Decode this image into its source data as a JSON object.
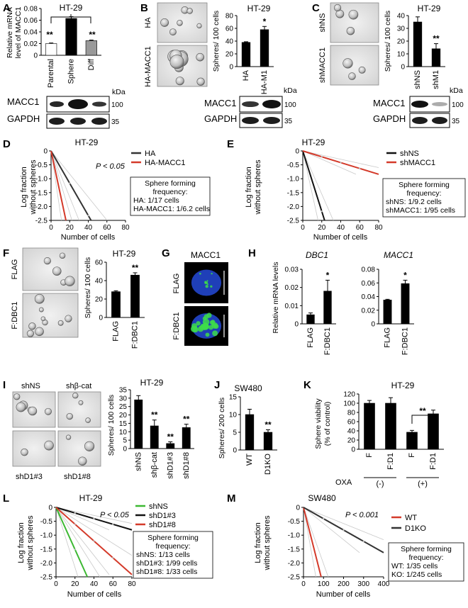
{
  "panels": {
    "A": {
      "letter": "A",
      "title": "HT-29",
      "ylabel": [
        "Relative mRNA",
        "level of MACC1"
      ],
      "yticks": [
        "0",
        "0.02",
        "0.04",
        "0.06",
        "0.08"
      ],
      "categories": [
        "Parental",
        "Sphere",
        "Diff"
      ],
      "sig": [
        "**",
        "**"
      ],
      "blot_labels": [
        "MACC1",
        "GAPDH"
      ],
      "kda": "kDa",
      "mw": [
        "100",
        "35"
      ]
    },
    "B": {
      "letter": "B",
      "title": "HT-29",
      "img_labels": [
        "HA",
        "HA-MACC1"
      ],
      "ylabel": "Spheres/ 100 cells",
      "yticks": [
        "0",
        "20",
        "40",
        "60",
        "80"
      ],
      "categories": [
        "HA",
        "HA-M1"
      ],
      "sig": "*",
      "blot_labels": [
        "MACC1",
        "GAPDH"
      ],
      "kda": "kDa",
      "mw": [
        "100",
        "35"
      ]
    },
    "C": {
      "letter": "C",
      "title": "HT-29",
      "img_labels": [
        "shNS",
        "shMACC1"
      ],
      "ylabel": "Spheres/ 100 cells",
      "yticks": [
        "0",
        "10",
        "20",
        "30",
        "40"
      ],
      "categories": [
        "shNS",
        "shM1"
      ],
      "sig": "**",
      "blot_labels": [
        "MACC1",
        "GAPDH"
      ],
      "kda": "kDa",
      "mw": [
        "100",
        "35"
      ]
    },
    "D": {
      "letter": "D",
      "title": "HT-29",
      "pvalue": "P < 0.05",
      "ylabel": [
        "Log fraction",
        "without spheres"
      ],
      "xlabel": "Number of cells",
      "yticks": [
        "0",
        "-0.5",
        "-1.0",
        "-1.5",
        "-2.0",
        "-2.5"
      ],
      "xticks": [
        "0",
        "20",
        "40",
        "60",
        "80"
      ],
      "legend": [
        "HA",
        "HA-MACC1"
      ],
      "box": [
        "Sphere forming",
        "frequency:",
        "HA: 1/17 cells",
        "HA-MACC1: 1/6.2 cells"
      ]
    },
    "E": {
      "letter": "E",
      "title": "HT-29",
      "ylabel": [
        "Log fraction",
        "without spheres"
      ],
      "xlabel": "Number of cells",
      "yticks": [
        "0",
        "-0.5",
        "-1.0",
        "-1.5",
        "-2.0",
        "-2.5"
      ],
      "xticks": [
        "0",
        "20",
        "40",
        "60",
        "80"
      ],
      "legend": [
        "shNS",
        "shMACC1"
      ],
      "box": [
        "Sphere forming",
        "frequency:",
        "shNS: 1/9.2 cells",
        "shMACC1: 1/95 cells"
      ]
    },
    "F": {
      "letter": "F",
      "title": "HT-29",
      "img_labels": [
        "FLAG",
        "F:DBC1"
      ],
      "ylabel": "Spheres/ 100 cells",
      "yticks": [
        "0",
        "20",
        "40",
        "60"
      ],
      "categories": [
        "FLAG",
        "F:DBC1"
      ],
      "sig": "**"
    },
    "G": {
      "letter": "G",
      "title": "MACC1",
      "img_labels": [
        "FLAG",
        "F:DBC1"
      ]
    },
    "H": {
      "letter": "H",
      "ylabel": "Relative mRNA levels",
      "left": {
        "title": "DBC1",
        "yticks": [
          "0",
          "0.01",
          "0.02",
          "0.03"
        ],
        "sig": "*"
      },
      "right": {
        "title": "MACC1",
        "yticks": [
          "0",
          "0.02",
          "0.04",
          "0.06",
          "0.08"
        ],
        "sig": "*"
      },
      "categories": [
        "FLAG",
        "F:DBC1"
      ]
    },
    "I": {
      "letter": "I",
      "title": "HT-29",
      "img_labels": [
        "shNS",
        "shβ-cat",
        "shD1#3",
        "shD1#8"
      ],
      "ylabel": "Spheres/ 100 cells",
      "yticks": [
        "0",
        "5",
        "10",
        "15",
        "20",
        "25",
        "30",
        "35"
      ],
      "categories": [
        "shNS",
        "shβ-cat",
        "shD1#3",
        "shD1#8"
      ],
      "sig": [
        "",
        "**",
        "**",
        "**"
      ]
    },
    "J": {
      "letter": "J",
      "title": "SW480",
      "ylabel": "Spheres/ 200 cells",
      "yticks": [
        "0",
        "5",
        "10",
        "15"
      ],
      "categories": [
        "WT",
        "D1KO"
      ],
      "sig": "**"
    },
    "K": {
      "letter": "K",
      "title": "HT-29",
      "ylabel": [
        "Sphere viability",
        "(% of control)"
      ],
      "yticks": [
        "0",
        "20",
        "40",
        "60",
        "80",
        "100",
        "120"
      ],
      "categories": [
        "F",
        "F:D1",
        "F",
        "F:D1"
      ],
      "oxa": "OXA",
      "groups": [
        "(-)",
        "(+)"
      ],
      "sig": "**"
    },
    "L": {
      "letter": "L",
      "title": "HT-29",
      "pvalue": "P < 0.05",
      "ylabel": [
        "Log fraction",
        "without spheres"
      ],
      "xlabel": "Number of cells",
      "yticks": [
        "0",
        "-0.5",
        "-1.0",
        "-1.5",
        "-2.0",
        "-2.5"
      ],
      "xticks": [
        "0",
        "20",
        "40",
        "60",
        "80"
      ],
      "legend": [
        "shNS",
        "shD1#3",
        "shD1#8"
      ],
      "box": [
        "Sphere forming",
        "frequency:",
        "shNS: 1/13 cells",
        "shD1#3: 1/99 cells",
        "shD1#8: 1/33 cells"
      ]
    },
    "M": {
      "letter": "M",
      "title": "SW480",
      "pvalue": "P < 0.001",
      "ylabel": [
        "Log fraction",
        "without spheres"
      ],
      "xlabel": "Number of cells",
      "yticks": [
        "0",
        "-0.5",
        "-1.0",
        "-1.5",
        "-2.0",
        "-2.5"
      ],
      "xticks": [
        "0",
        "100",
        "200",
        "300",
        "400"
      ],
      "legend": [
        "WT",
        "D1KO"
      ],
      "box": [
        "Sphere forming",
        "frequency:",
        "WT: 1/35 cells",
        "KO: 1/245 cells"
      ]
    }
  },
  "chart_data": [
    {
      "type": "bar",
      "panel": "A",
      "categories": [
        "Parental",
        "Sphere",
        "Diff"
      ],
      "values": [
        0.02,
        0.063,
        0.025
      ],
      "errors": [
        0.001,
        0.003,
        0.001
      ],
      "ylim": [
        0,
        0.08
      ]
    },
    {
      "type": "bar",
      "panel": "B",
      "categories": [
        "HA",
        "HA-M1"
      ],
      "values": [
        38,
        58
      ],
      "errors": [
        1,
        5
      ],
      "ylim": [
        0,
        80
      ]
    },
    {
      "type": "bar",
      "panel": "C",
      "categories": [
        "shNS",
        "shM1"
      ],
      "values": [
        35,
        14
      ],
      "errors": [
        4,
        4
      ],
      "ylim": [
        0,
        40
      ]
    },
    {
      "type": "line",
      "panel": "D",
      "xlim": [
        0,
        80
      ],
      "ylim": [
        -2.5,
        0
      ],
      "series": [
        {
          "name": "HA",
          "color": "#333333",
          "x": [
            0,
            43
          ],
          "y": [
            0,
            -2.5
          ]
        },
        {
          "name": "HA-MACC1",
          "color": "#d43a2a",
          "x": [
            0,
            16
          ],
          "y": [
            0,
            -2.5
          ]
        }
      ]
    },
    {
      "type": "line",
      "panel": "E",
      "xlim": [
        0,
        80
      ],
      "ylim": [
        -2.5,
        0
      ],
      "series": [
        {
          "name": "shNS",
          "color": "#111111",
          "x": [
            0,
            23
          ],
          "y": [
            0,
            -2.5
          ]
        },
        {
          "name": "shMACC1",
          "color": "#d43a2a",
          "x": [
            0,
            80
          ],
          "y": [
            0,
            -0.84
          ]
        }
      ]
    },
    {
      "type": "bar",
      "panel": "F",
      "categories": [
        "FLAG",
        "F:DBC1"
      ],
      "values": [
        28,
        46
      ],
      "errors": [
        1,
        2.5
      ],
      "ylim": [
        0,
        60
      ]
    },
    {
      "type": "bar",
      "panel": "H-DBC1",
      "categories": [
        "FLAG",
        "F:DBC1"
      ],
      "values": [
        0.005,
        0.018
      ],
      "errors": [
        0.001,
        0.006
      ],
      "ylim": [
        0,
        0.03
      ]
    },
    {
      "type": "bar",
      "panel": "H-MACC1",
      "categories": [
        "FLAG",
        "F:DBC1"
      ],
      "values": [
        0.035,
        0.059
      ],
      "errors": [
        0.001,
        0.005
      ],
      "ylim": [
        0,
        0.08
      ]
    },
    {
      "type": "bar",
      "panel": "I",
      "categories": [
        "shNS",
        "shβ-cat",
        "shD1#3",
        "shD1#8"
      ],
      "values": [
        29,
        13.5,
        3,
        12.5
      ],
      "errors": [
        2.5,
        3.5,
        1,
        2
      ],
      "ylim": [
        0,
        35
      ]
    },
    {
      "type": "bar",
      "panel": "J",
      "categories": [
        "WT",
        "D1KO"
      ],
      "values": [
        10,
        5
      ],
      "errors": [
        1.5,
        0.7
      ],
      "ylim": [
        0,
        15
      ]
    },
    {
      "type": "bar",
      "panel": "K",
      "categories": [
        "F",
        "F:D1",
        "F",
        "F:D1"
      ],
      "values": [
        100,
        100,
        37,
        77
      ],
      "errors": [
        6,
        12,
        4,
        8
      ],
      "ylim": [
        0,
        120
      ]
    },
    {
      "type": "line",
      "panel": "L",
      "xlim": [
        0,
        80
      ],
      "ylim": [
        -2.5,
        0
      ],
      "series": [
        {
          "name": "shNS",
          "color": "#3cb832",
          "x": [
            0,
            33
          ],
          "y": [
            0,
            -2.5
          ]
        },
        {
          "name": "shD1#3",
          "color": "#111111",
          "x": [
            0,
            80
          ],
          "y": [
            0,
            -0.81
          ]
        },
        {
          "name": "shD1#8",
          "color": "#d43a2a",
          "x": [
            0,
            80
          ],
          "y": [
            0,
            -2.42
          ]
        }
      ]
    },
    {
      "type": "line",
      "panel": "M",
      "xlim": [
        0,
        400
      ],
      "ylim": [
        -2.5,
        0
      ],
      "series": [
        {
          "name": "WT",
          "color": "#d43a2a",
          "x": [
            0,
            88
          ],
          "y": [
            0,
            -2.5
          ]
        },
        {
          "name": "D1KO",
          "color": "#333333",
          "x": [
            0,
            400
          ],
          "y": [
            0,
            -1.63
          ]
        }
      ]
    }
  ]
}
